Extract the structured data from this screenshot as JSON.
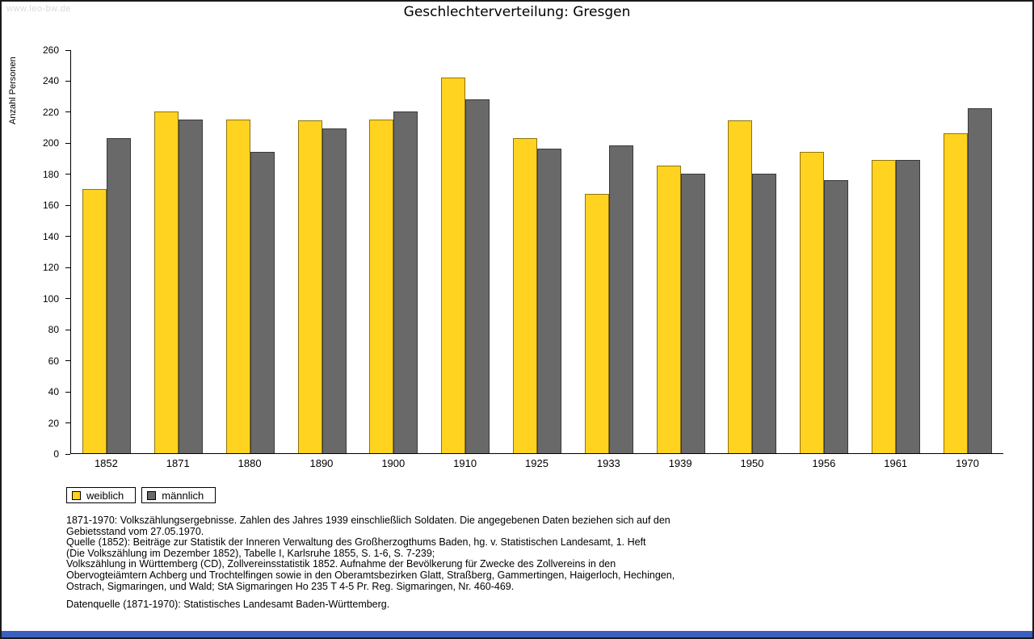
{
  "page": {
    "watermark": "www.leo-bw.de",
    "title": "Geschlechterverteilung: Gresgen",
    "colors": {
      "bottom_bar": "#3b5fc0",
      "axis": "#000000",
      "watermark_gray": "#d9d9d9"
    }
  },
  "chart_data": {
    "type": "bar",
    "title": "Geschlechterverteilung: Gresgen",
    "xlabel": "",
    "ylabel": "Anzahl Personen",
    "ylim": [
      0,
      260
    ],
    "ytick_step": 20,
    "grid": false,
    "legend_position": "bottom-left",
    "categories": [
      "1852",
      "1871",
      "1880",
      "1890",
      "1900",
      "1910",
      "1925",
      "1933",
      "1939",
      "1950",
      "1956",
      "1961",
      "1970"
    ],
    "series": [
      {
        "name": "weiblich",
        "color": "#ffd320",
        "values": [
          170,
          220,
          215,
          214,
          215,
          242,
          203,
          167,
          185,
          214,
          194,
          189,
          206
        ]
      },
      {
        "name": "männlich",
        "color": "#696969",
        "values": [
          203,
          215,
          194,
          209,
          220,
          228,
          196,
          198,
          180,
          180,
          176,
          189,
          222
        ]
      }
    ]
  },
  "footnotes": {
    "para1": [
      "1871-1970: Volkszählungsergebnisse. Zahlen des Jahres 1939 einschließlich Soldaten. Die angegebenen Daten beziehen sich auf den",
      "Gebietsstand vom 27.05.1970.",
      "Quelle (1852): Beiträge zur Statistik der Inneren Verwaltung des Großherzogthums Baden, hg. v. Statistischen Landesamt, 1. Heft",
      "(Die Volkszählung im Dezember 1852), Tabelle I, Karlsruhe 1855, S. 1-6, S. 7-239;",
      "Volkszählung in Württemberg (CD), Zollvereinsstatistik 1852. Aufnahme der Bevölkerung für Zwecke des Zollvereins in den",
      "Obervogteiämtern Achberg und Trochtelfingen sowie in den Oberamtsbezirken Glatt, Straßberg, Gammertingen, Haigerloch, Hechingen,",
      "Ostrach, Sigmaringen, und Wald; StA Sigmaringen Ho 235 T 4-5 Pr. Reg. Sigmaringen, Nr. 460-469."
    ],
    "para2": "Datenquelle (1871-1970): Statistisches Landesamt Baden-Württemberg."
  }
}
